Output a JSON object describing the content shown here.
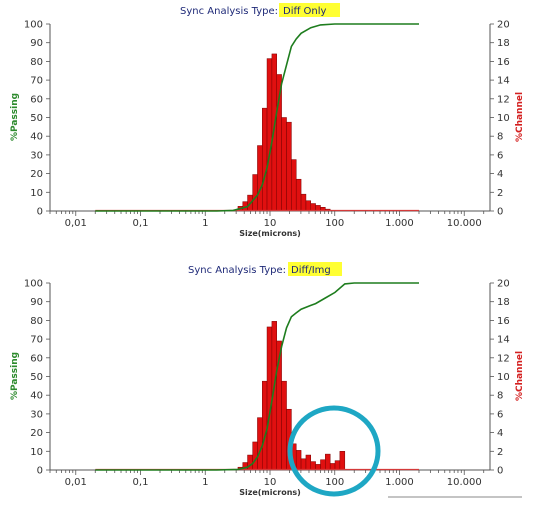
{
  "colors": {
    "cumulative_curve": "#1e7d1e",
    "cumulative_flat": "#d43a3a",
    "bars": "#e01010",
    "bar_edge": "#7a0000",
    "highlight": "#ffff33",
    "circle": "#1ea7c4",
    "axis": "#555555"
  },
  "chart_data": [
    {
      "type": "bar",
      "title_prefix": "Sync Analysis Type:",
      "title_highlight": "Diff Only",
      "xlabel": "Size(microns)",
      "ylabel_left": "%Passing",
      "ylabel_right": "%Channel",
      "x_scale": "log",
      "xlim": [
        0.004,
        25000
      ],
      "x_ticks": [
        {
          "v": 0.01,
          "label": "0,01"
        },
        {
          "v": 0.1,
          "label": "0,1"
        },
        {
          "v": 1,
          "label": "1"
        },
        {
          "v": 10,
          "label": "10"
        },
        {
          "v": 100,
          "label": "100"
        },
        {
          "v": 1000,
          "label": "1.000"
        },
        {
          "v": 10000,
          "label": "10.000"
        }
      ],
      "ylim_left": [
        0,
        100
      ],
      "y_ticks_left": [
        0,
        10,
        20,
        30,
        40,
        50,
        60,
        70,
        80,
        90,
        100
      ],
      "ylim_right": [
        0,
        20
      ],
      "y_ticks_right": [
        0,
        2,
        4,
        6,
        8,
        10,
        12,
        14,
        16,
        18,
        20
      ],
      "series": [
        {
          "kind": "bars",
          "axis": "right",
          "bins": [
            {
              "x0": 2.7,
              "x1": 3.2,
              "y": 0.1
            },
            {
              "x0": 3.2,
              "x1": 3.8,
              "y": 0.5
            },
            {
              "x0": 3.8,
              "x1": 4.5,
              "y": 1.0
            },
            {
              "x0": 4.5,
              "x1": 5.4,
              "y": 1.7
            },
            {
              "x0": 5.4,
              "x1": 6.4,
              "y": 3.9
            },
            {
              "x0": 6.4,
              "x1": 7.6,
              "y": 7.0
            },
            {
              "x0": 7.6,
              "x1": 9.0,
              "y": 11.0
            },
            {
              "x0": 9.0,
              "x1": 10.7,
              "y": 16.3
            },
            {
              "x0": 10.7,
              "x1": 12.7,
              "y": 16.8
            },
            {
              "x0": 12.7,
              "x1": 15.1,
              "y": 14.6
            },
            {
              "x0": 15.1,
              "x1": 18.0,
              "y": 10.0
            },
            {
              "x0": 18.0,
              "x1": 21.4,
              "y": 9.5
            },
            {
              "x0": 21.4,
              "x1": 25.4,
              "y": 5.5
            },
            {
              "x0": 25.4,
              "x1": 30.2,
              "y": 3.4
            },
            {
              "x0": 30.2,
              "x1": 35.9,
              "y": 1.8
            },
            {
              "x0": 35.9,
              "x1": 42.6,
              "y": 1.1
            },
            {
              "x0": 42.6,
              "x1": 50.6,
              "y": 0.8
            },
            {
              "x0": 50.6,
              "x1": 60.2,
              "y": 0.6
            },
            {
              "x0": 60.2,
              "x1": 71.5,
              "y": 0.4
            },
            {
              "x0": 71.5,
              "x1": 85.0,
              "y": 0.2
            }
          ]
        },
        {
          "kind": "line",
          "axis": "left",
          "x": [
            0.02,
            1.5,
            2.7,
            4.5,
            6.4,
            7.6,
            9.0,
            10.7,
            12.7,
            15.1,
            18.0,
            21.4,
            25.4,
            30.2,
            42.6,
            60.2,
            100,
            2000
          ],
          "y": [
            0,
            0,
            0.3,
            2.3,
            8.5,
            14,
            23,
            37,
            53,
            68,
            78,
            88,
            92,
            95,
            98,
            99.5,
            100,
            100
          ]
        },
        {
          "kind": "flat",
          "axis": "right",
          "x": [
            0.02,
            2000
          ],
          "y": [
            0,
            0
          ]
        }
      ]
    },
    {
      "type": "bar",
      "title_prefix": "Sync Analysis Type:",
      "title_highlight": "Diff/Img",
      "xlabel": "Size(microns)",
      "ylabel_left": "%Passing",
      "ylabel_right": "%Channel",
      "x_scale": "log",
      "xlim": [
        0.004,
        25000
      ],
      "x_ticks": [
        {
          "v": 0.01,
          "label": "0,01"
        },
        {
          "v": 0.1,
          "label": "0,1"
        },
        {
          "v": 1,
          "label": "1"
        },
        {
          "v": 10,
          "label": "10"
        },
        {
          "v": 100,
          "label": "100"
        },
        {
          "v": 1000,
          "label": "1.000"
        },
        {
          "v": 10000,
          "label": "10.000"
        }
      ],
      "ylim_left": [
        0,
        100
      ],
      "y_ticks_left": [
        0,
        10,
        20,
        30,
        40,
        50,
        60,
        70,
        80,
        90,
        100
      ],
      "ylim_right": [
        0,
        20
      ],
      "y_ticks_right": [
        0,
        2,
        4,
        6,
        8,
        10,
        12,
        14,
        16,
        18,
        20
      ],
      "series": [
        {
          "kind": "bars",
          "axis": "right",
          "bins": [
            {
              "x0": 3.2,
              "x1": 3.8,
              "y": 0.3
            },
            {
              "x0": 3.8,
              "x1": 4.5,
              "y": 0.8
            },
            {
              "x0": 4.5,
              "x1": 5.4,
              "y": 1.6
            },
            {
              "x0": 5.4,
              "x1": 6.4,
              "y": 3.0
            },
            {
              "x0": 6.4,
              "x1": 7.6,
              "y": 5.6
            },
            {
              "x0": 7.6,
              "x1": 9.0,
              "y": 9.5
            },
            {
              "x0": 9.0,
              "x1": 10.7,
              "y": 15.3
            },
            {
              "x0": 10.7,
              "x1": 12.7,
              "y": 15.9
            },
            {
              "x0": 12.7,
              "x1": 15.1,
              "y": 13.8
            },
            {
              "x0": 15.1,
              "x1": 18.0,
              "y": 9.5
            },
            {
              "x0": 18.0,
              "x1": 21.4,
              "y": 6.5
            },
            {
              "x0": 21.4,
              "x1": 25.4,
              "y": 2.8
            },
            {
              "x0": 25.4,
              "x1": 30.2,
              "y": 2.1
            },
            {
              "x0": 30.2,
              "x1": 35.9,
              "y": 1.2
            },
            {
              "x0": 35.9,
              "x1": 42.6,
              "y": 1.6
            },
            {
              "x0": 42.6,
              "x1": 50.6,
              "y": 0.9
            },
            {
              "x0": 50.6,
              "x1": 60.2,
              "y": 0.6
            },
            {
              "x0": 60.2,
              "x1": 71.5,
              "y": 1.1
            },
            {
              "x0": 71.5,
              "x1": 85.0,
              "y": 1.7
            },
            {
              "x0": 85.0,
              "x1": 101,
              "y": 0.7
            },
            {
              "x0": 101,
              "x1": 120,
              "y": 1.0
            },
            {
              "x0": 120,
              "x1": 143,
              "y": 2.0
            }
          ]
        },
        {
          "kind": "line",
          "axis": "left",
          "x": [
            0.02,
            1.5,
            3.2,
            4.5,
            5.4,
            6.4,
            7.6,
            9.0,
            10.7,
            12.7,
            15.1,
            18.0,
            21.4,
            25.4,
            30.2,
            42.6,
            50.6,
            71.5,
            101,
            143,
            200,
            2000
          ],
          "y": [
            0,
            0,
            0.3,
            1.5,
            3.5,
            7,
            13,
            22,
            37,
            53,
            66,
            76,
            82,
            84,
            86,
            88,
            89,
            92,
            95,
            99.5,
            100,
            100
          ]
        },
        {
          "kind": "flat",
          "axis": "right",
          "x": [
            0.02,
            2000
          ],
          "y": [
            0,
            0
          ]
        }
      ]
    }
  ]
}
